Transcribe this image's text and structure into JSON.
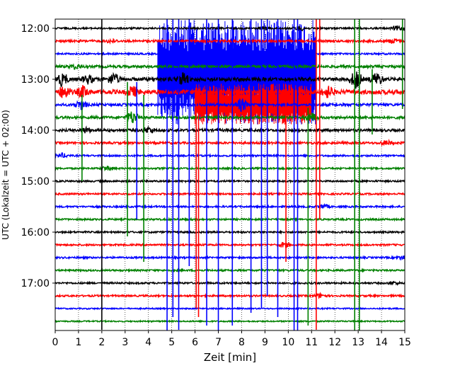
{
  "chart_data": {
    "type": "line",
    "subtype": "helicorder-seismogram",
    "xlabel": "Zeit  [min]",
    "ylabel": "UTC (Lokalzeit = UTC + 02:00)",
    "xlim": [
      0,
      15
    ],
    "x_ticks": [
      0,
      1,
      2,
      3,
      4,
      5,
      6,
      7,
      8,
      9,
      10,
      11,
      12,
      13,
      14,
      15
    ],
    "x_tick_labels": [
      "0",
      "1",
      "2",
      "3",
      "4",
      "5",
      "6",
      "7",
      "8",
      "9",
      "10",
      "11",
      "12",
      "13",
      "14",
      "15"
    ],
    "y_tick_labels": [
      "12:00",
      "13:00",
      "14:00",
      "15:00",
      "16:00",
      "17:00"
    ],
    "line_interval_minutes": 15,
    "start_time": "12:00",
    "end_time": "17:45",
    "grid": "vertical dotted at each minute",
    "trace_colors": [
      "#000000",
      "#ff0000",
      "#0000ff",
      "#008000"
    ],
    "rows": [
      {
        "start": "12:00",
        "color": "#000000",
        "amplitude": 0.2,
        "events": [
          {
            "t": 9.0,
            "amp": 0.3
          },
          {
            "t": 10.5,
            "amp": 0.5
          },
          {
            "t": 14.7,
            "amp": 0.5
          }
        ]
      },
      {
        "start": "12:15",
        "color": "#ff0000",
        "amplitude": 0.25,
        "events": [
          {
            "t": 2.4,
            "amp": 0.4
          },
          {
            "t": 14.5,
            "amp": 0.5
          }
        ]
      },
      {
        "start": "12:30",
        "color": "#0000ff",
        "amplitude": 0.2,
        "events": []
      },
      {
        "start": "12:45",
        "color": "#008000",
        "amplitude": 0.3,
        "events": [
          {
            "t": 0.9,
            "amp": 0.5
          }
        ]
      },
      {
        "start": "13:00",
        "color": "#000000",
        "amplitude": 0.4,
        "events": [
          {
            "t": 0.3,
            "amp": 1.5
          },
          {
            "t": 1.4,
            "amp": 0.9
          },
          {
            "t": 2.5,
            "amp": 1.3
          },
          {
            "t": 5.5,
            "amp": 1.5
          },
          {
            "t": 12.9,
            "amp": 2.0
          },
          {
            "t": 13.8,
            "amp": 1.5
          }
        ]
      },
      {
        "start": "13:15",
        "color": "#ff0000",
        "amplitude": 0.5,
        "events": [
          {
            "t": 0.4,
            "amp": 1.5
          },
          {
            "t": 1.2,
            "amp": 1.2
          },
          {
            "t": 3.3,
            "amp": 1.2
          },
          {
            "t": 11.7,
            "amp": 1.2
          }
        ]
      },
      {
        "start": "13:30",
        "color": "#0000ff",
        "amplitude": 0.3,
        "events": [
          {
            "t": 1.1,
            "amp": 1.0
          },
          {
            "t": 8.0,
            "amp": 1.5
          }
        ]
      },
      {
        "start": "13:45",
        "color": "#008000",
        "amplitude": 0.3,
        "events": [
          {
            "t": 3.3,
            "amp": 1.5
          },
          {
            "t": 11.0,
            "amp": 1.0
          }
        ]
      },
      {
        "start": "14:00",
        "color": "#000000",
        "amplitude": 0.3,
        "events": [
          {
            "t": 1.3,
            "amp": 0.6
          },
          {
            "t": 4.0,
            "amp": 0.7
          }
        ]
      },
      {
        "start": "14:15",
        "color": "#ff0000",
        "amplitude": 0.25,
        "events": [
          {
            "t": 14.2,
            "amp": 0.5
          }
        ]
      },
      {
        "start": "14:30",
        "color": "#0000ff",
        "amplitude": 0.2,
        "events": [
          {
            "t": 0.3,
            "amp": 0.5
          }
        ]
      },
      {
        "start": "14:45",
        "color": "#008000",
        "amplitude": 0.2,
        "events": [
          {
            "t": 2.2,
            "amp": 0.5
          }
        ]
      },
      {
        "start": "15:00",
        "color": "#000000",
        "amplitude": 0.2,
        "events": []
      },
      {
        "start": "15:15",
        "color": "#ff0000",
        "amplitude": 0.2,
        "events": []
      },
      {
        "start": "15:30",
        "color": "#0000ff",
        "amplitude": 0.2,
        "events": [
          {
            "t": 11.5,
            "amp": 0.5
          }
        ]
      },
      {
        "start": "15:45",
        "color": "#008000",
        "amplitude": 0.2,
        "events": []
      },
      {
        "start": "16:00",
        "color": "#000000",
        "amplitude": 0.2,
        "events": []
      },
      {
        "start": "16:15",
        "color": "#ff0000",
        "amplitude": 0.2,
        "events": [
          {
            "t": 9.8,
            "amp": 0.6
          }
        ]
      },
      {
        "start": "16:30",
        "color": "#0000ff",
        "amplitude": 0.2,
        "events": [
          {
            "t": 14.9,
            "amp": 0.4
          }
        ]
      },
      {
        "start": "16:45",
        "color": "#008000",
        "amplitude": 0.2,
        "events": []
      },
      {
        "start": "17:00",
        "color": "#000000",
        "amplitude": 0.2,
        "events": [
          {
            "t": 14.5,
            "amp": 0.3
          }
        ]
      },
      {
        "start": "17:15",
        "color": "#ff0000",
        "amplitude": 0.2,
        "events": [
          {
            "t": 11.4,
            "amp": 0.5
          }
        ]
      },
      {
        "start": "17:30",
        "color": "#0000ff",
        "amplitude": 0.15,
        "events": []
      },
      {
        "start": "17:45",
        "color": "#008000",
        "amplitude": 0.15,
        "events": []
      }
    ],
    "spikes": [
      {
        "t": 2.0,
        "color": "#000000",
        "from": "12:00",
        "to": "17:50"
      },
      {
        "t": 1.15,
        "color": "#008000",
        "from": "13:30",
        "to": "14:55"
      },
      {
        "t": 3.1,
        "color": "#008000",
        "from": "13:15",
        "to": "16:00"
      },
      {
        "t": 3.5,
        "color": "#0000ff",
        "from": "13:15",
        "to": "15:40"
      },
      {
        "t": 3.8,
        "color": "#008000",
        "from": "13:30",
        "to": "16:30"
      },
      {
        "t": 4.8,
        "color": "#0000ff",
        "from": "12:00",
        "to": "17:55"
      },
      {
        "t": 5.05,
        "color": "#0000ff",
        "from": "12:00",
        "to": "17:35"
      },
      {
        "t": 5.3,
        "color": "#0000ff",
        "from": "12:00",
        "to": "17:50"
      },
      {
        "t": 5.75,
        "color": "#0000ff",
        "from": "12:00",
        "to": "16:35"
      },
      {
        "t": 6.05,
        "color": "#ff0000",
        "from": "13:30",
        "to": "17:25"
      },
      {
        "t": 6.15,
        "color": "#ff0000",
        "from": "13:30",
        "to": "17:35"
      },
      {
        "t": 6.5,
        "color": "#0000ff",
        "from": "12:00",
        "to": "17:45"
      },
      {
        "t": 7.0,
        "color": "#0000ff",
        "from": "12:00",
        "to": "17:55"
      },
      {
        "t": 7.6,
        "color": "#0000ff",
        "from": "12:00",
        "to": "17:45"
      },
      {
        "t": 8.4,
        "color": "#0000ff",
        "from": "12:00",
        "to": "17:30"
      },
      {
        "t": 8.85,
        "color": "#0000ff",
        "from": "12:00",
        "to": "17:25"
      },
      {
        "t": 9.1,
        "color": "#0000ff",
        "from": "12:00",
        "to": "17:10"
      },
      {
        "t": 9.55,
        "color": "#0000ff",
        "from": "12:00",
        "to": "17:35"
      },
      {
        "t": 9.9,
        "color": "#ff0000",
        "from": "13:30",
        "to": "16:30"
      },
      {
        "t": 10.25,
        "color": "#0000ff",
        "from": "12:00",
        "to": "17:55"
      },
      {
        "t": 10.4,
        "color": "#0000ff",
        "from": "12:00",
        "to": "17:55"
      },
      {
        "t": 10.85,
        "color": "#008000",
        "from": "13:45",
        "to": "17:45"
      },
      {
        "t": 11.2,
        "color": "#ff0000",
        "from": "12:00",
        "to": "17:50"
      },
      {
        "t": 11.35,
        "color": "#ff0000",
        "from": "12:00",
        "to": "15:40"
      },
      {
        "t": 12.85,
        "color": "#008000",
        "from": "12:00",
        "to": "17:55"
      },
      {
        "t": 13.05,
        "color": "#008000",
        "from": "12:00",
        "to": "17:55"
      },
      {
        "t": 13.6,
        "color": "#008000",
        "from": "13:00",
        "to": "14:00"
      },
      {
        "t": 14.9,
        "color": "#008000",
        "from": "12:00",
        "to": "13:30"
      }
    ],
    "dense_bursts": [
      {
        "from_t": 4.4,
        "to_t": 6.0,
        "from": "12:00",
        "to": "13:45",
        "color": "#0000ff"
      },
      {
        "from_t": 6.0,
        "to_t": 11.2,
        "from": "12:00",
        "to": "13:45",
        "color": "#0000ff"
      },
      {
        "from_t": 6.0,
        "to_t": 11.0,
        "from": "13:15",
        "to": "13:45",
        "color": "#ff0000"
      }
    ]
  }
}
